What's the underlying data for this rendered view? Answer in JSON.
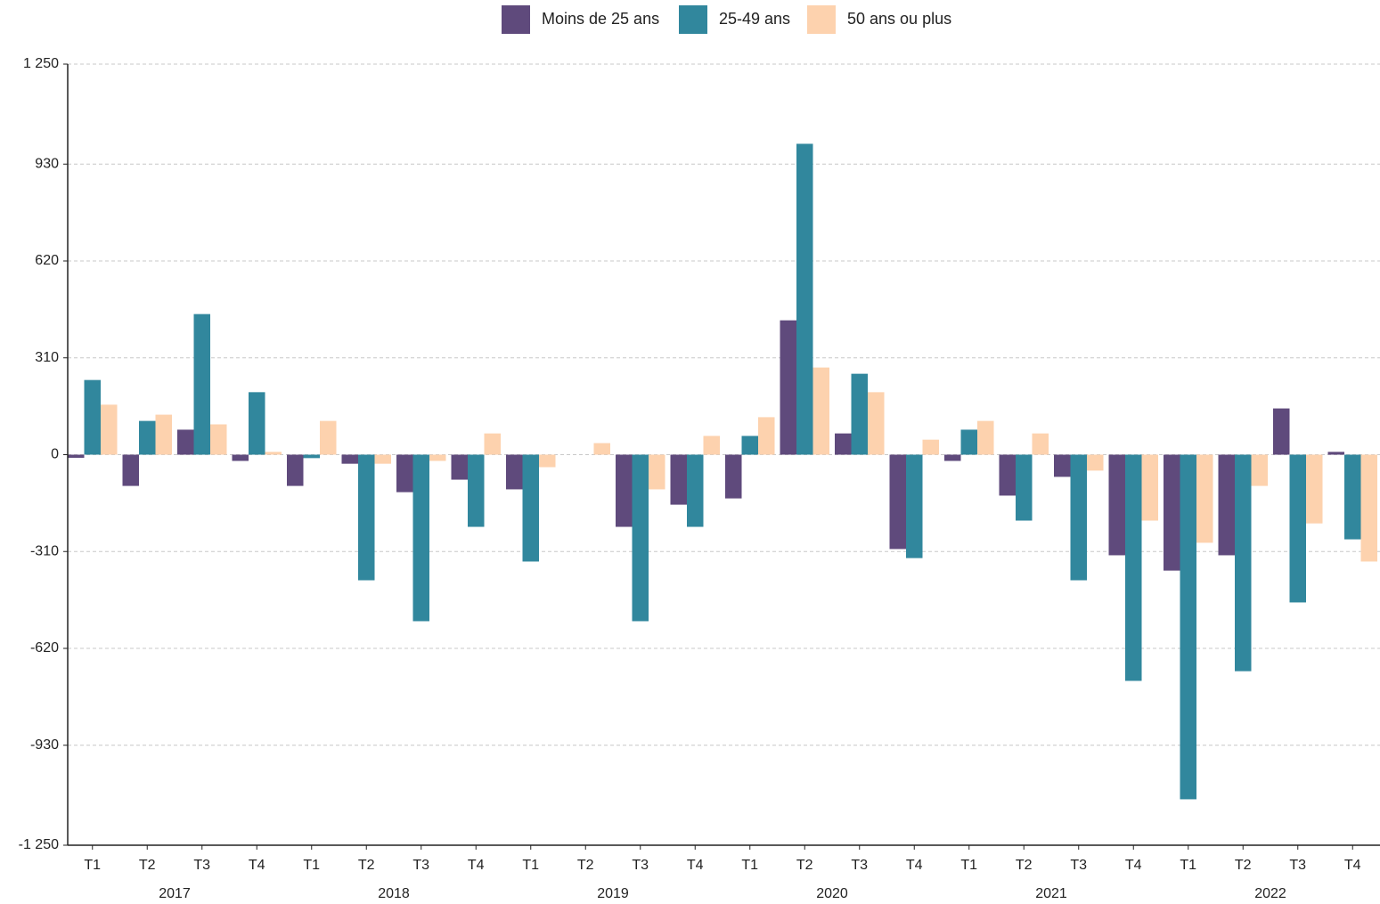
{
  "chart_data": {
    "type": "bar",
    "categories": [
      "T1",
      "T2",
      "T3",
      "T4",
      "T1",
      "T2",
      "T3",
      "T4",
      "T1",
      "T2",
      "T3",
      "T4",
      "T1",
      "T2",
      "T3",
      "T4",
      "T1",
      "T2",
      "T3",
      "T4",
      "T1",
      "T2",
      "T3",
      "T4"
    ],
    "groups": [
      "2017",
      "2018",
      "2019",
      "2020",
      "2021",
      "2022"
    ],
    "series": [
      {
        "name": "Moins de 25 ans",
        "color": "#5f4a7c",
        "values": [
          -10,
          -100,
          80,
          -20,
          -100,
          -29,
          -120,
          -80,
          -111,
          0,
          -231,
          -160,
          -140,
          430,
          68,
          -302,
          -20,
          -131,
          -71,
          -322,
          -371,
          -322,
          148,
          9
        ]
      },
      {
        "name": "25-49 ans",
        "color": "#31879d",
        "values": [
          239,
          108,
          450,
          200,
          -11,
          -402,
          -533,
          -231,
          -342,
          0,
          -533,
          -231,
          60,
          995,
          259,
          -331,
          80,
          -211,
          -402,
          -724,
          -1103,
          -693,
          -473,
          -271
        ]
      },
      {
        "name": "50 ans ou plus",
        "color": "#fdd2ae",
        "values": [
          160,
          128,
          97,
          9,
          108,
          -29,
          -20,
          68,
          -40,
          37,
          -111,
          60,
          120,
          279,
          200,
          48,
          108,
          68,
          -51,
          -211,
          -282,
          -100,
          -220,
          -342
        ]
      }
    ],
    "ylim": [
      -1250,
      1250
    ],
    "yticks": [
      {
        "value": -1250,
        "label": "-1 250"
      },
      -930,
      -620,
      -310,
      0,
      310,
      620,
      930,
      {
        "value": 1250,
        "label": "1 250"
      }
    ],
    "grid": true
  }
}
